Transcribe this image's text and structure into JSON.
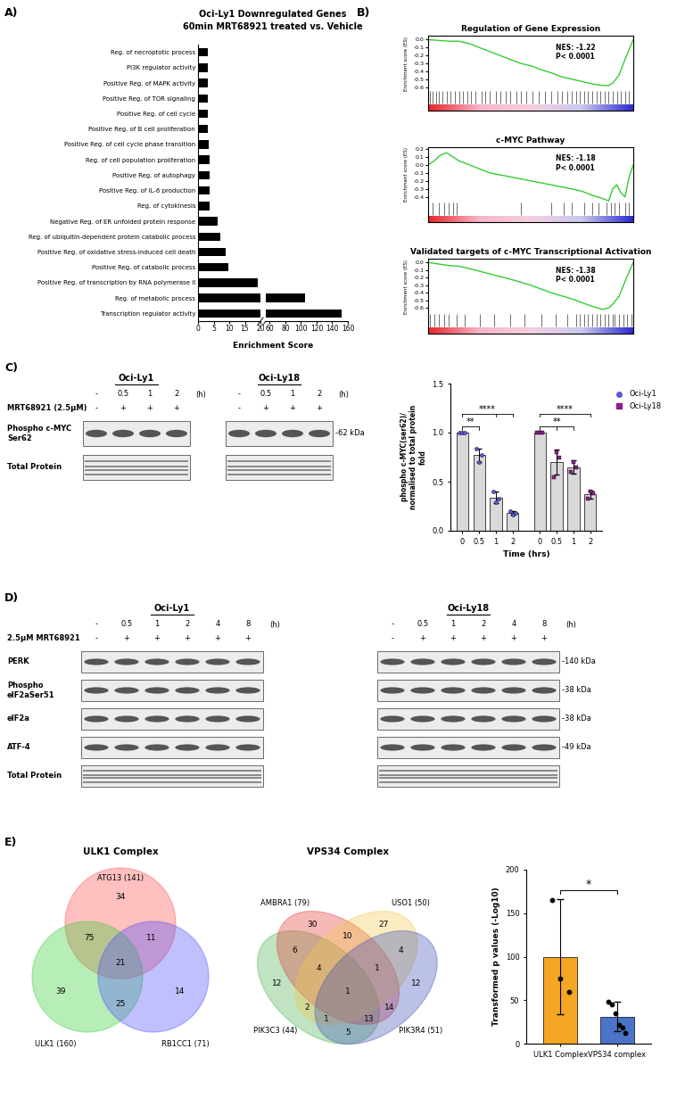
{
  "chart_data": [
    {
      "panel": "A)",
      "type": "bar",
      "orientation": "horizontal",
      "title": "Oci-Ly1 Downregulated Genes",
      "subtitle": "60min MRT68921 treated vs. Vehicle",
      "x_label": "Enrichment Score",
      "color": "#000000",
      "categories": [
        "Reg. of necroptotic process",
        "PI3K regulator activity",
        "Positive Reg. of MAPK activity",
        "Positive Reg. of TOR signaling",
        "Positive Reg. of cell cycle",
        "Positive Reg. of B cell proliferation",
        "Positive Reg. of cell cycle phase transition",
        "Reg. of cell population proliferation",
        "Positive Reg. of autophagy",
        "Positive Reg. of IL-6 production",
        "Reg. of cytokinesis",
        "Negative Reg. of ER unfolded protein response",
        "Reg. of ubiquitin-dependent protein catabolic process",
        "Positive Reg. of oxidative stress-induced cell death",
        "Positive Reg. of catabolic process",
        "Positive Reg. of transcription by RNA polymerase II",
        "Reg. of metabolic process",
        "Transcription regulator activity"
      ],
      "values": [
        3,
        3,
        3,
        3,
        3,
        3.2,
        3.4,
        3.6,
        3.8,
        3.8,
        3.8,
        6.2,
        7.2,
        8.8,
        9.8,
        19,
        105,
        152
      ],
      "x_axes": [
        {
          "xlim": [
            0,
            20
          ],
          "xticks": [
            0,
            5,
            10,
            15,
            20
          ]
        },
        {
          "xlim": [
            55,
            160
          ],
          "xticks": [
            60,
            80,
            100,
            120,
            140,
            160
          ]
        }
      ]
    },
    {
      "panel": "B)",
      "type": "gsea",
      "charts": [
        {
          "title": "Regulation of Gene Expression",
          "y_label": "Enrichment score (ES)",
          "nes": "NES: -1.22",
          "p": "P< 0.0001",
          "color": "#33cc33",
          "tick_labels": "y",
          "x": [
            0,
            5,
            10,
            15,
            20,
            25,
            30,
            35,
            40,
            45,
            50,
            55,
            60,
            65,
            70,
            75,
            80,
            85,
            88,
            90,
            93,
            96,
            100
          ],
          "values": [
            0,
            -0.01,
            -0.02,
            -0.02,
            -0.05,
            -0.1,
            -0.15,
            -0.2,
            -0.25,
            -0.3,
            -0.33,
            -0.38,
            -0.42,
            -0.47,
            -0.5,
            -0.53,
            -0.56,
            -0.58,
            -0.58,
            -0.55,
            -0.45,
            -0.25,
            0
          ],
          "xlim": [
            0,
            100
          ],
          "ylim": [
            -0.65,
            0.05
          ],
          "yticks": [
            {
              "value": 0,
              "label": "0.0"
            },
            -0.1,
            -0.2,
            -0.3,
            -0.4,
            -0.5,
            -0.6
          ],
          "hits": [
            1,
            2,
            4,
            5,
            7,
            9,
            11,
            13,
            15,
            17,
            19,
            21,
            23,
            26,
            28,
            30,
            33,
            35,
            38,
            40,
            43,
            45,
            48,
            51,
            54,
            57,
            60,
            63,
            65,
            68,
            70,
            72,
            74,
            76,
            78,
            80,
            82,
            84,
            86,
            88,
            90,
            92,
            94,
            96,
            98
          ]
        },
        {
          "title": "c-MYC Pathway",
          "y_label": "Enrichment score (ES)",
          "nes": "NES: -1.18",
          "p": "P< 0.0001",
          "color": "#33cc33",
          "tick_labels": "y",
          "x": [
            0,
            3,
            6,
            9,
            12,
            15,
            20,
            25,
            30,
            40,
            50,
            60,
            70,
            75,
            80,
            85,
            88,
            90,
            92,
            94,
            96,
            98,
            100
          ],
          "values": [
            0,
            0.05,
            0.12,
            0.15,
            0.1,
            0.05,
            0,
            -0.05,
            -0.1,
            -0.15,
            -0.2,
            -0.25,
            -0.3,
            -0.33,
            -0.38,
            -0.42,
            -0.45,
            -0.3,
            -0.25,
            -0.35,
            -0.4,
            -0.15,
            0
          ],
          "xlim": [
            0,
            100
          ],
          "ylim": [
            -0.47,
            0.22
          ],
          "yticks": [
            0.2,
            0.1,
            {
              "value": 0,
              "label": "0.0"
            },
            -0.1,
            -0.2,
            -0.3,
            -0.4
          ],
          "hits": [
            2,
            5,
            8,
            10,
            12,
            14,
            45,
            60,
            66,
            70,
            76,
            80,
            83,
            87,
            89,
            91,
            93,
            96,
            98
          ]
        },
        {
          "title": "Validated targets of c-MYC Transcriptional Activation",
          "y_label": "Enrichment score (ES)",
          "nes": "NES: -1.38",
          "p": "P< 0.0001",
          "color": "#33cc33",
          "tick_labels": "y",
          "x": [
            0,
            5,
            10,
            15,
            20,
            30,
            40,
            50,
            60,
            70,
            75,
            80,
            85,
            88,
            90,
            93,
            96,
            100
          ],
          "values": [
            0,
            -0.02,
            -0.04,
            -0.05,
            -0.08,
            -0.15,
            -0.22,
            -0.3,
            -0.4,
            -0.48,
            -0.53,
            -0.58,
            -0.62,
            -0.6,
            -0.55,
            -0.45,
            -0.25,
            0
          ],
          "xlim": [
            0,
            100
          ],
          "ylim": [
            -0.68,
            0.05
          ],
          "yticks": [
            {
              "value": 0,
              "label": "0.0"
            },
            -0.1,
            -0.2,
            -0.3,
            -0.4,
            -0.5,
            -0.6
          ],
          "hits": [
            1,
            3,
            5,
            8,
            10,
            14,
            18,
            25,
            32,
            40,
            47,
            55,
            62,
            68,
            72,
            74,
            76,
            78,
            80,
            82,
            84,
            86,
            88,
            90,
            91,
            93,
            95,
            97,
            99
          ]
        }
      ]
    },
    {
      "panel": "C)",
      "type": "blot",
      "cell_lines": [
        "Oci-Ly1",
        "Oci-Ly18"
      ],
      "times": [
        "-",
        "0.5",
        "1",
        "2"
      ],
      "time_unit": "(h)",
      "treatment_label": "MRT68921 (2.5µM)",
      "treatment": [
        "-",
        "+",
        "+",
        "+"
      ],
      "rows": [
        {
          "label": "Phospho c-MYC\nSer62",
          "kda": "-62 kDa"
        },
        {
          "label": "Total Protein"
        }
      ]
    },
    {
      "type": "bar",
      "y_label": "phospho c-MYC(ser62)/\nnormalised to total protein\nfold",
      "x_label": "Time (hrs)",
      "color": "#d9d9d9",
      "legend": "right",
      "categories": [
        "0",
        "0.5",
        "1",
        "2"
      ],
      "series": [
        {
          "name": "Oci-Ly1",
          "color": "#5b5bd6",
          "marker": "o",
          "values": [
            1.0,
            0.77,
            0.34,
            0.18
          ],
          "errors": [
            0,
            0.07,
            0.06,
            0.02
          ],
          "points": [
            [
              1,
              1,
              1
            ],
            [
              0.84,
              0.7,
              0.77
            ],
            [
              0.4,
              0.29,
              0.33
            ],
            [
              0.2,
              0.16,
              0.18
            ]
          ]
        },
        {
          "name": "Oci-Ly18",
          "color": "#8e1f8e",
          "marker": "s",
          "values": [
            1.0,
            0.7,
            0.65,
            0.37
          ],
          "errors": [
            0,
            0.13,
            0.07,
            0.04
          ],
          "points": [
            [
              1,
              1,
              1
            ],
            [
              0.55,
              0.8,
              0.75
            ],
            [
              0.6,
              0.7,
              0.65
            ],
            [
              0.33,
              0.4,
              0.38
            ]
          ]
        }
      ],
      "ylim": [
        0,
        1.5
      ],
      "yticks": [
        {
          "value": 0,
          "label": "0.0"
        },
        0.5,
        {
          "value": 1,
          "label": "1.0"
        },
        1.5
      ],
      "significance": [
        {
          "series": "Oci-Ly1",
          "from": "0",
          "to": [
            "0.5"
          ],
          "label": "**"
        },
        {
          "series": "Oci-Ly1",
          "from": "0",
          "to": [
            "1",
            "2"
          ],
          "label": "****"
        },
        {
          "series": "Oci-Ly18",
          "from": "0",
          "to": [
            "0.5",
            "1"
          ],
          "label": "**"
        },
        {
          "series": "Oci-Ly18",
          "from": "0",
          "to": [
            "2"
          ],
          "label": "****"
        }
      ]
    },
    {
      "panel": "D)",
      "type": "blot",
      "cell_lines": [
        "Oci-Ly1",
        "Oci-Ly18"
      ],
      "times": [
        "-",
        "0.5",
        "1",
        "2",
        "4",
        "8"
      ],
      "time_unit": "(h)",
      "treatment_label": "2.5µM MRT68921",
      "treatment": [
        "-",
        "+",
        "+",
        "+",
        "+",
        "+"
      ],
      "rows": [
        {
          "label": "PERK",
          "kda": "-140 kDa"
        },
        {
          "label": "Phospho\neIF2aSer51",
          "kda": "-38 kDa"
        },
        {
          "label": "eIF2a",
          "kda": "-38 kDa"
        },
        {
          "label": "ATF-4",
          "kda": "-49 kDa"
        },
        {
          "label": "Total Protein"
        }
      ]
    },
    {
      "panel": "E)",
      "type": "venn",
      "title": "ULK1 Complex",
      "sets": [
        {
          "name": "ATG13",
          "label": "ATG13 (141)",
          "color": "#ff4d4d"
        },
        {
          "name": "ULK1",
          "label": "ULK1 (160)",
          "color": "#33cc33"
        },
        {
          "name": "RB1CC1",
          "label": "RB1CC1 (71)",
          "color": "#4d4dff"
        }
      ],
      "regions": [
        {
          "sets": [
            "ATG13"
          ],
          "count": 34
        },
        {
          "sets": [
            "ULK1"
          ],
          "count": 39
        },
        {
          "sets": [
            "RB1CC1"
          ],
          "count": 14
        },
        {
          "sets": [
            "ATG13",
            "ULK1"
          ],
          "count": 75
        },
        {
          "sets": [
            "ATG13",
            "RB1CC1"
          ],
          "count": 11
        },
        {
          "sets": [
            "ULK1",
            "RB1CC1"
          ],
          "count": 25
        },
        {
          "sets": [
            "ATG13",
            "ULK1",
            "RB1CC1"
          ],
          "count": 21
        }
      ]
    },
    {
      "type": "venn",
      "title": "VPS34 Complex",
      "sets": [
        {
          "name": "PIK3C3",
          "label": "PIK3C3 (44)",
          "color": "#4caf50"
        },
        {
          "name": "AMBRA1",
          "label": "AMBRA1 (79)",
          "color": "#e53935"
        },
        {
          "name": "USO1",
          "label": "USO1 (50)",
          "color": "#f2c94c"
        },
        {
          "name": "PIK3R4",
          "label": "PIK3R4 (51)",
          "color": "#3f51b5"
        }
      ],
      "regions": [
        {
          "sets": [
            "AMBRA1"
          ],
          "count": 30
        },
        {
          "sets": [
            "AMBRA1",
            "USO1"
          ],
          "count": 10
        },
        {
          "sets": [
            "USO1"
          ],
          "count": 27
        },
        {
          "sets": [
            "PIK3C3",
            "AMBRA1"
          ],
          "count": 6
        },
        {
          "sets": [
            "PIK3C3",
            "AMBRA1",
            "USO1"
          ],
          "count": 4
        },
        {
          "sets": [
            "AMBRA1",
            "USO1",
            "PIK3R4"
          ],
          "count": 1
        },
        {
          "sets": [
            "USO1",
            "PIK3R4"
          ],
          "count": 4
        },
        {
          "sets": [
            "PIK3C3"
          ],
          "count": 12
        },
        {
          "sets": [
            "PIK3R4"
          ],
          "count": 12
        },
        {
          "sets": [
            "PIK3C3",
            "AMBRA1",
            "USO1",
            "PIK3R4"
          ],
          "count": 1
        },
        {
          "sets": [
            "AMBRA1",
            "PIK3R4"
          ],
          "count": 14
        },
        {
          "sets": [
            "PIK3C3",
            "USO1"
          ],
          "count": 2
        },
        {
          "sets": [
            "PIK3C3",
            "AMBRA1",
            "PIK3R4"
          ],
          "count": 13
        },
        {
          "sets": [
            "PIK3C3",
            "USO1",
            "PIK3R4"
          ],
          "count": 1
        },
        {
          "sets": [
            "PIK3C3",
            "PIK3R4"
          ],
          "count": 5
        }
      ]
    },
    {
      "type": "bar",
      "y_label": "Transformed p values (-Log10)",
      "categories": [
        "ULK1 Complex",
        "VPS34 complex"
      ],
      "colors": [
        "#f5a623",
        "#4a74c9"
      ],
      "values": [
        100,
        31
      ],
      "errors": [
        66,
        17
      ],
      "points": [
        [
          165,
          75,
          60
        ],
        [
          48,
          45,
          35,
          22,
          18,
          12
        ]
      ],
      "ylim": [
        0,
        200
      ],
      "yticks": [
        0,
        50,
        100,
        150,
        200
      ],
      "significance": [
        {
          "from": "ULK1 Complex",
          "to": [
            "VPS34 complex"
          ],
          "label": "*"
        }
      ]
    }
  ]
}
